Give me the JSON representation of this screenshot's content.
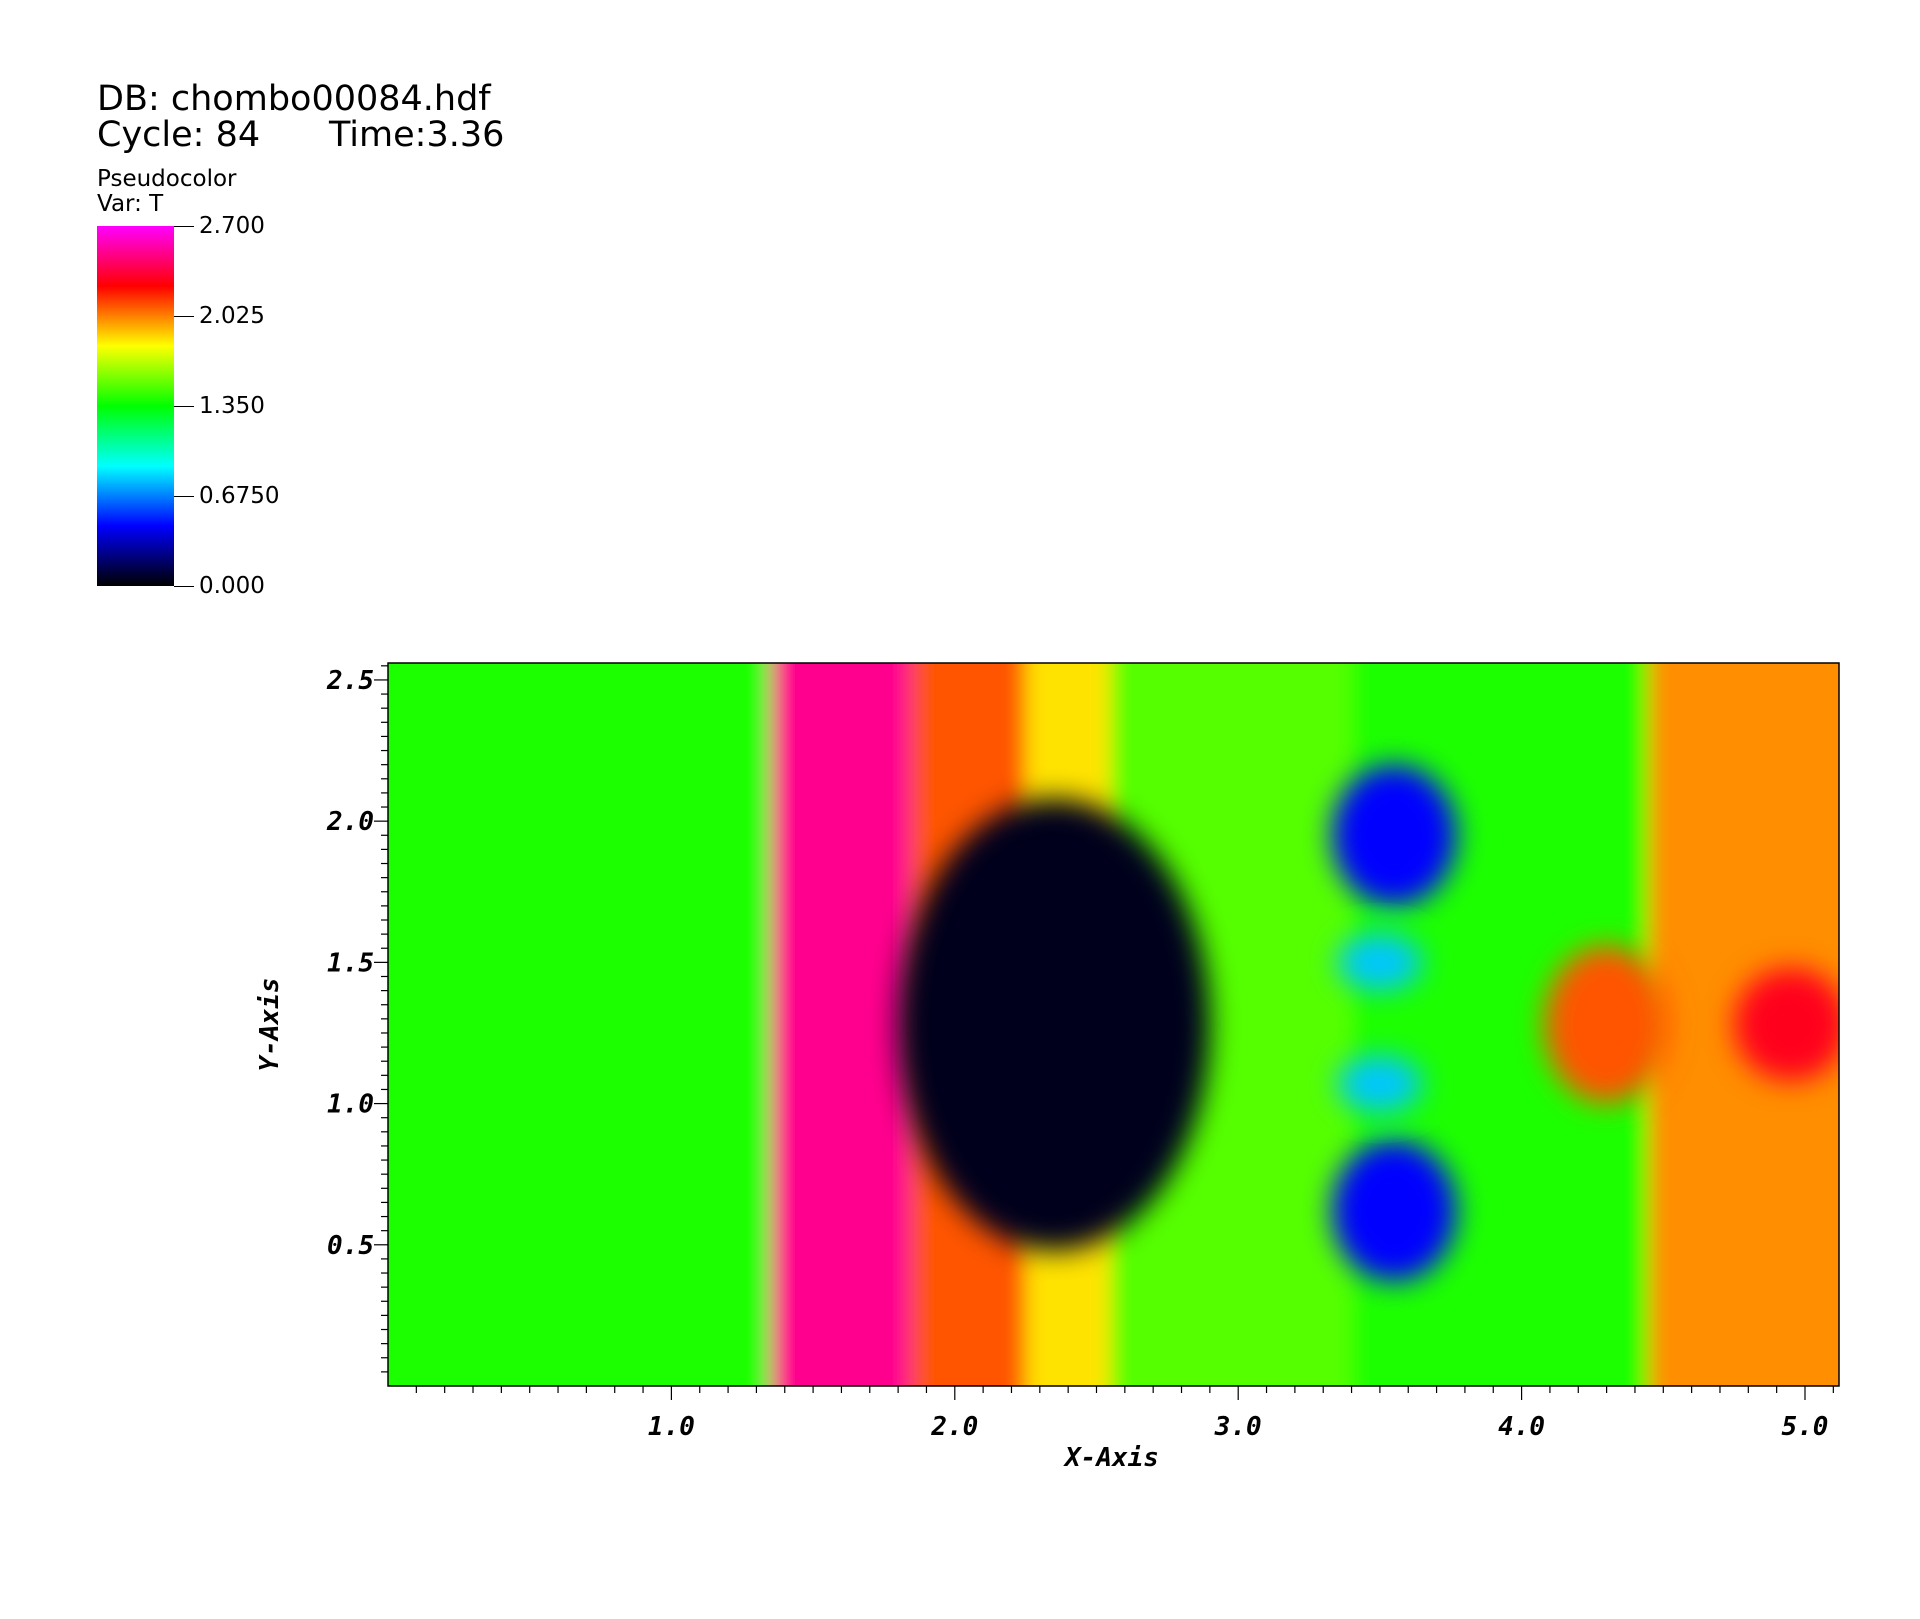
{
  "header": {
    "db_line": "DB: chombo00084.hdf",
    "cycle_label": "Cycle: 84",
    "time_label": "Time:3.36"
  },
  "legend": {
    "title": "Pseudocolor",
    "var_label": "Var: T",
    "min": 0.0,
    "max": 2.7,
    "ticks": [
      {
        "value": 2.7,
        "label": "2.700"
      },
      {
        "value": 2.025,
        "label": "2.025"
      },
      {
        "value": 1.35,
        "label": "1.350"
      },
      {
        "value": 0.675,
        "label": "0.6750"
      },
      {
        "value": 0.0,
        "label": "0.000"
      }
    ],
    "colors": [
      "#000000",
      "#0000ff",
      "#00ffff",
      "#00ff00",
      "#ffff00",
      "#ff0000",
      "#ff00ff"
    ]
  },
  "chart_data": {
    "type": "heatmap",
    "variable": "T",
    "xlabel": "X-Axis",
    "ylabel": "Y-Axis",
    "xlim": [
      0.0,
      5.12
    ],
    "ylim": [
      0.0,
      2.56
    ],
    "x_ticks": [
      {
        "value": 1.0,
        "label": "1.0"
      },
      {
        "value": 2.0,
        "label": "2.0"
      },
      {
        "value": 3.0,
        "label": "3.0"
      },
      {
        "value": 4.0,
        "label": "4.0"
      },
      {
        "value": 5.0,
        "label": "5.0"
      }
    ],
    "y_ticks": [
      {
        "value": 0.5,
        "label": "0.5"
      },
      {
        "value": 1.0,
        "label": "1.0"
      },
      {
        "value": 1.5,
        "label": "1.5"
      },
      {
        "value": 2.0,
        "label": "2.0"
      },
      {
        "value": 2.5,
        "label": "2.5"
      }
    ],
    "bands": [
      {
        "x0": 0.0,
        "x1": 1.35,
        "T": 1.4
      },
      {
        "x0": 1.35,
        "x1": 1.85,
        "T": 2.5
      },
      {
        "x0": 1.85,
        "x1": 2.25,
        "T": 2.1
      },
      {
        "x0": 2.25,
        "x1": 2.55,
        "T": 1.85
      },
      {
        "x0": 2.55,
        "x1": 3.4,
        "T": 1.5
      },
      {
        "x0": 3.4,
        "x1": 4.45,
        "T": 1.4
      },
      {
        "x0": 4.45,
        "x1": 5.12,
        "T": 2.0
      }
    ],
    "regions": [
      {
        "shape": "ellipse",
        "cx": 2.35,
        "cy": 1.28,
        "rx": 0.55,
        "ry": 0.8,
        "T": 0.05
      },
      {
        "shape": "ellipse",
        "cx": 3.55,
        "cy": 1.95,
        "rx": 0.22,
        "ry": 0.25,
        "T": 0.45
      },
      {
        "shape": "ellipse",
        "cx": 3.55,
        "cy": 0.62,
        "rx": 0.22,
        "ry": 0.25,
        "T": 0.45
      },
      {
        "shape": "ellipse",
        "cx": 3.5,
        "cy": 1.5,
        "rx": 0.15,
        "ry": 0.1,
        "T": 0.8
      },
      {
        "shape": "ellipse",
        "cx": 3.5,
        "cy": 1.07,
        "rx": 0.15,
        "ry": 0.1,
        "T": 0.8
      },
      {
        "shape": "ellipse",
        "cx": 4.3,
        "cy": 1.28,
        "rx": 0.22,
        "ry": 0.28,
        "T": 2.1
      },
      {
        "shape": "ellipse",
        "cx": 4.95,
        "cy": 1.28,
        "rx": 0.2,
        "ry": 0.2,
        "T": 2.3
      }
    ]
  }
}
